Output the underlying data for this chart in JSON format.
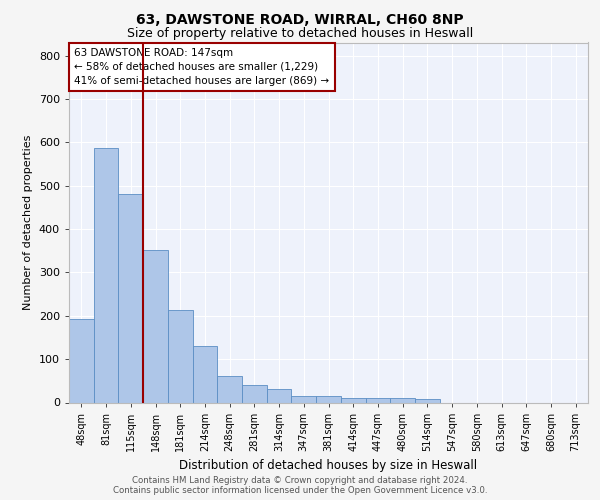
{
  "title_line1": "63, DAWSTONE ROAD, WIRRAL, CH60 8NP",
  "title_line2": "Size of property relative to detached houses in Heswall",
  "xlabel": "Distribution of detached houses by size in Heswall",
  "ylabel": "Number of detached properties",
  "footer_line1": "Contains HM Land Registry data © Crown copyright and database right 2024.",
  "footer_line2": "Contains public sector information licensed under the Open Government Licence v3.0.",
  "annotation_line1": "63 DAWSTONE ROAD: 147sqm",
  "annotation_line2": "← 58% of detached houses are smaller (1,229)",
  "annotation_line3": "41% of semi-detached houses are larger (869) →",
  "bar_labels": [
    "48sqm",
    "81sqm",
    "115sqm",
    "148sqm",
    "181sqm",
    "214sqm",
    "248sqm",
    "281sqm",
    "314sqm",
    "347sqm",
    "381sqm",
    "414sqm",
    "447sqm",
    "480sqm",
    "514sqm",
    "547sqm",
    "580sqm",
    "613sqm",
    "647sqm",
    "680sqm",
    "713sqm"
  ],
  "bar_values": [
    192,
    587,
    480,
    352,
    214,
    130,
    62,
    40,
    32,
    15,
    15,
    11,
    10,
    10,
    8,
    0,
    0,
    0,
    0,
    0,
    0
  ],
  "bar_color": "#aec6e8",
  "bar_edge_color": "#5b8ec4",
  "vertical_line_color": "#990000",
  "annotation_box_edge_color": "#990000",
  "background_color": "#eef2fb",
  "grid_color": "#ffffff",
  "ylim": [
    0,
    830
  ],
  "yticks": [
    0,
    100,
    200,
    300,
    400,
    500,
    600,
    700,
    800
  ],
  "fig_width": 6.0,
  "fig_height": 5.0,
  "dpi": 100,
  "title1_fontsize": 10,
  "title2_fontsize": 9,
  "ylabel_fontsize": 8,
  "xlabel_fontsize": 8.5,
  "xtick_fontsize": 7,
  "ytick_fontsize": 8,
  "annotation_fontsize": 7.5,
  "footer_fontsize": 6.2
}
